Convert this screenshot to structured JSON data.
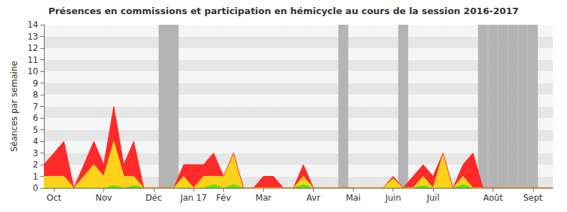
{
  "chart_data": {
    "type": "area",
    "title": "Présences en commissions et participation en hémicycle au cours de la session 2016-2017",
    "ylabel": "Séances par semaine",
    "categories": [
      null,
      "Oct",
      null,
      null,
      null,
      null,
      "Nov",
      null,
      null,
      null,
      null,
      "Déc",
      null,
      null,
      null,
      "Jan 17",
      null,
      null,
      "Fév",
      null,
      null,
      null,
      "Mar",
      null,
      null,
      null,
      null,
      "Avr",
      null,
      null,
      null,
      "Mai",
      null,
      null,
      null,
      "Juin",
      null,
      null,
      null,
      "Juil",
      null,
      null,
      null,
      null,
      null,
      "Août",
      null,
      null,
      null,
      "Sept",
      null,
      null
    ],
    "series": [
      {
        "color": "#66dd00",
        "values": [
          0,
          0,
          0,
          0,
          0,
          0,
          0,
          0.2,
          0,
          0.2,
          0,
          0,
          0,
          0,
          0,
          0,
          0,
          0.3,
          0,
          0.3,
          0,
          0,
          0,
          0,
          0,
          0,
          0.3,
          0,
          0,
          0,
          0,
          0,
          0,
          0,
          0,
          0,
          0,
          0,
          0.2,
          0,
          0,
          0,
          0.3,
          0,
          0,
          0,
          0,
          0,
          0,
          0,
          0,
          0
        ]
      },
      {
        "color": "#ffd21a",
        "values": [
          1,
          1,
          1,
          0,
          1,
          2,
          1,
          3.8,
          1,
          0.8,
          0,
          0,
          0,
          0,
          1,
          0,
          1,
          0.7,
          1,
          2.7,
          0,
          0,
          0,
          0,
          0,
          0,
          0.7,
          0,
          0,
          0,
          0,
          0,
          0,
          0,
          0,
          0.8,
          0,
          0,
          0.8,
          0,
          2.9,
          0,
          0.7,
          0,
          0,
          0,
          0,
          0,
          0,
          0,
          0,
          0
        ]
      },
      {
        "color": "#ff2a2a",
        "values": [
          1,
          2,
          3,
          0,
          1,
          2,
          1,
          3,
          1,
          3,
          0,
          0,
          0,
          0,
          1,
          2,
          1,
          2,
          0,
          0,
          0,
          0,
          1,
          1,
          0,
          0,
          1,
          0,
          0,
          0,
          0,
          0,
          0,
          0,
          0,
          0.2,
          0,
          1,
          1,
          1,
          0.1,
          0,
          1,
          3,
          0,
          0,
          0,
          0,
          0,
          0,
          0,
          0
        ]
      }
    ],
    "shaded": {
      "color": "#b4b4b4",
      "values": [
        false,
        false,
        false,
        false,
        false,
        false,
        false,
        false,
        false,
        false,
        false,
        false,
        true,
        true,
        false,
        false,
        false,
        false,
        false,
        false,
        false,
        false,
        false,
        false,
        false,
        false,
        false,
        false,
        false,
        false,
        true,
        false,
        false,
        false,
        false,
        false,
        true,
        false,
        false,
        false,
        false,
        false,
        false,
        false,
        true,
        true,
        true,
        true,
        true,
        true,
        false,
        false
      ]
    },
    "stacked": true,
    "grid": true,
    "ylim": [
      0,
      14
    ],
    "yticks": [
      0,
      1,
      2,
      3,
      4,
      5,
      6,
      7,
      8,
      9,
      10,
      11,
      12,
      13,
      14
    ]
  }
}
